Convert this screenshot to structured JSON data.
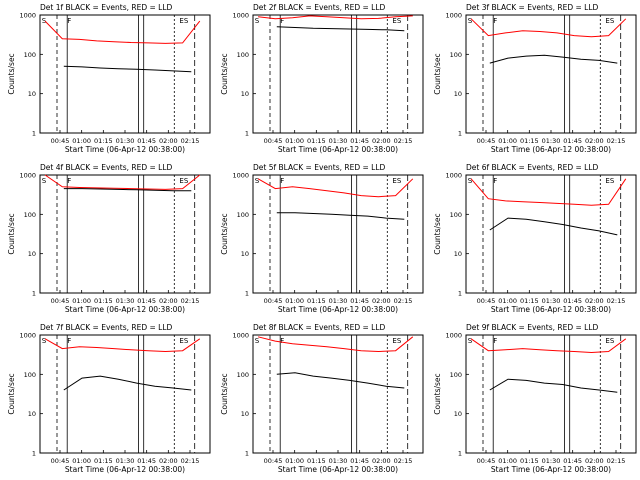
{
  "chart_data": {
    "type": "line",
    "colors": {
      "events": "#000000",
      "lld": "#ff0000"
    },
    "yscale": "log",
    "ylim": [
      1,
      1000
    ],
    "ytick_labels": [
      "1",
      "10",
      "100",
      "1000"
    ],
    "ylabel": "Counts/sec",
    "xtick_labels": [
      "00:45",
      "01:00",
      "01:15",
      "01:30",
      "01:45",
      "02:00",
      "02:15"
    ],
    "xlabel": "Start Time (06-Apr-12 00:38:00)",
    "panels": [
      {
        "title": "Det 1f BLACK = Events, RED = LLD",
        "events": [
          50,
          48,
          45,
          43,
          42,
          40,
          38,
          36
        ],
        "lld": [
          700,
          250,
          240,
          220,
          210,
          200,
          195,
          190,
          195,
          700
        ]
      },
      {
        "title": "Det 2f BLACK = Events, RED = LLD",
        "events": [
          500,
          480,
          460,
          450,
          440,
          430,
          420,
          400
        ],
        "lld": [
          900,
          800,
          850,
          950,
          900,
          850,
          800,
          820,
          900,
          950
        ]
      },
      {
        "title": "Det 3f BLACK = Events, RED = LLD",
        "events": [
          60,
          80,
          90,
          95,
          85,
          75,
          70,
          60
        ],
        "lld": [
          800,
          300,
          350,
          400,
          380,
          350,
          300,
          280,
          300,
          800
        ]
      },
      {
        "title": "Det 4f BLACK = Events, RED = LLD",
        "events": [
          450,
          450,
          440,
          430,
          420,
          410,
          400,
          400
        ],
        "lld": [
          1000,
          500,
          480,
          470,
          460,
          450,
          440,
          430,
          450,
          1000
        ]
      },
      {
        "title": "Det 5f BLACK = Events, RED = LLD",
        "events": [
          110,
          110,
          105,
          100,
          95,
          90,
          80,
          75
        ],
        "lld": [
          800,
          450,
          500,
          450,
          400,
          350,
          300,
          280,
          300,
          800
        ]
      },
      {
        "title": "Det 6f BLACK = Events, RED = LLD",
        "events": [
          40,
          80,
          75,
          65,
          55,
          45,
          38,
          30
        ],
        "lld": [
          800,
          250,
          220,
          210,
          200,
          190,
          180,
          170,
          180,
          800
        ]
      },
      {
        "title": "Det 7f BLACK = Events, RED = LLD",
        "events": [
          40,
          80,
          90,
          75,
          60,
          50,
          45,
          40
        ],
        "lld": [
          800,
          450,
          500,
          480,
          450,
          420,
          400,
          380,
          400,
          800
        ]
      },
      {
        "title": "Det 8f BLACK = Events, RED = LLD",
        "events": [
          100,
          110,
          90,
          80,
          70,
          60,
          50,
          45
        ],
        "lld": [
          900,
          700,
          600,
          550,
          500,
          450,
          400,
          380,
          400,
          900
        ]
      },
      {
        "title": "Det 9f BLACK = Events, RED = LLD",
        "events": [
          40,
          75,
          70,
          60,
          55,
          45,
          40,
          35
        ],
        "lld": [
          800,
          400,
          420,
          450,
          420,
          400,
          380,
          360,
          380,
          800
        ]
      }
    ],
    "markers": [
      "S",
      "F",
      "ES"
    ]
  }
}
